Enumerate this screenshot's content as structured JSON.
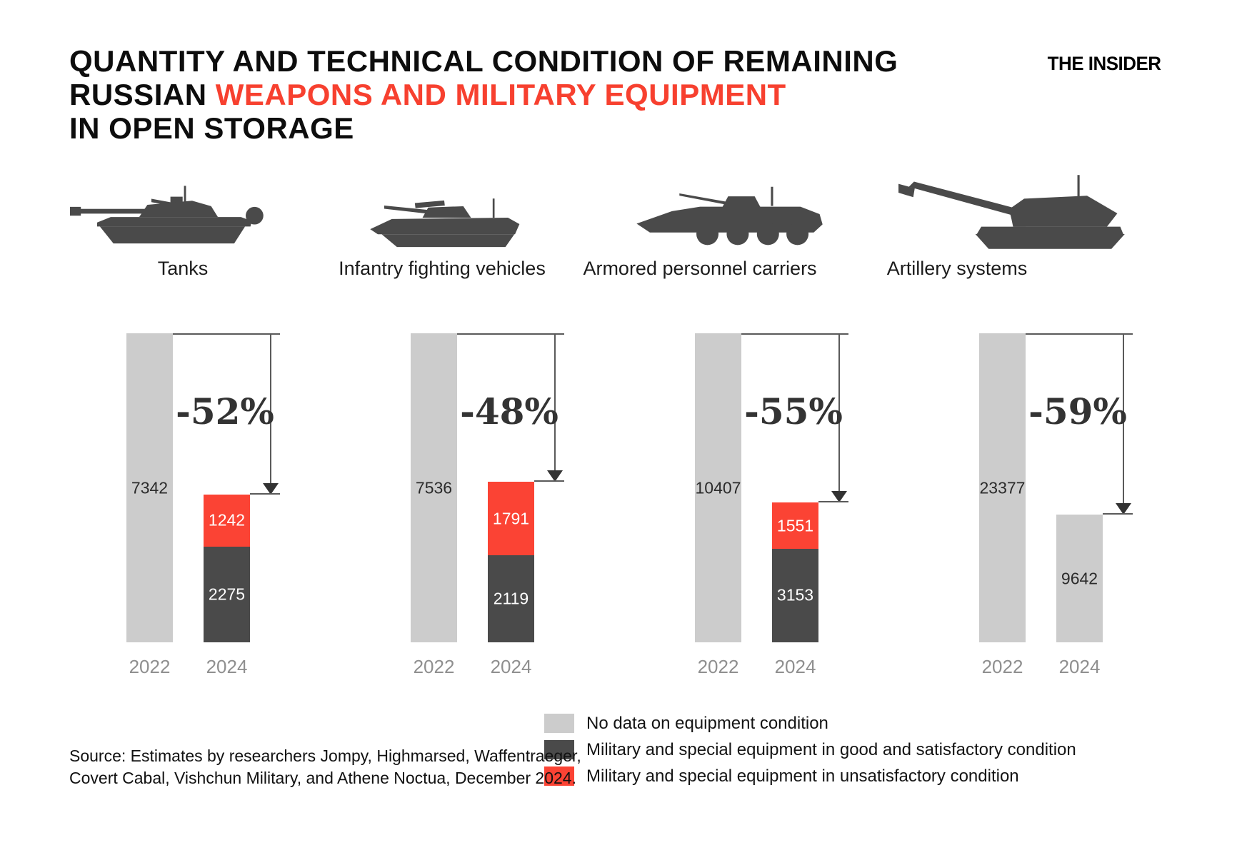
{
  "header": {
    "title_line1": "QUANTITY AND TECHNICAL CONDITION OF REMAINING",
    "title_line2_prefix": "RUSSIAN",
    "title_line2_highlight": "WEAPONS AND MILITARY EQUIPMENT",
    "title_line3": "IN OPEN STORAGE",
    "brand": "THE INSIDER"
  },
  "colors": {
    "title_highlight": "#f7402f",
    "nodata": "#cccccc",
    "good": "#4a4a4a",
    "unsat": "#fb4334",
    "value_dark_text": "#2b2b2b",
    "value_light_text": "#ffffff"
  },
  "chart_data": {
    "type": "bar",
    "title": "Quantity and technical condition of remaining Russian weapons and military equipment in open storage",
    "years": [
      "2022",
      "2024"
    ],
    "categories": [
      "Tanks",
      "Infantry fighting vehicles",
      "Armored personnel carriers",
      "Artillery systems"
    ],
    "grid": false,
    "legend_position": "bottom-right",
    "normalization": "each 2022 bar drawn full height; 2024 bar scaled to its 2022 total",
    "groups": [
      {
        "category": "Tanks",
        "icon": "tank-icon",
        "percent_change": "-52%",
        "bars": [
          {
            "year": "2022",
            "segments": [
              {
                "condition": "nodata",
                "value": 7342
              }
            ]
          },
          {
            "year": "2024",
            "segments": [
              {
                "condition": "unsat",
                "value": 1242
              },
              {
                "condition": "good",
                "value": 2275
              }
            ]
          }
        ]
      },
      {
        "category": "Infantry fighting vehicles",
        "icon": "ifv-icon",
        "percent_change": "-48%",
        "bars": [
          {
            "year": "2022",
            "segments": [
              {
                "condition": "nodata",
                "value": 7536
              }
            ]
          },
          {
            "year": "2024",
            "segments": [
              {
                "condition": "unsat",
                "value": 1791
              },
              {
                "condition": "good",
                "value": 2119
              }
            ]
          }
        ]
      },
      {
        "category": "Armored personnel carriers",
        "icon": "apc-icon",
        "percent_change": "-55%",
        "bars": [
          {
            "year": "2022",
            "segments": [
              {
                "condition": "nodata",
                "value": 10407
              }
            ]
          },
          {
            "year": "2024",
            "segments": [
              {
                "condition": "unsat",
                "value": 1551
              },
              {
                "condition": "good",
                "value": 3153
              }
            ]
          }
        ]
      },
      {
        "category": "Artillery systems",
        "icon": "artillery-icon",
        "percent_change": "-59%",
        "bars": [
          {
            "year": "2022",
            "segments": [
              {
                "condition": "nodata",
                "value": 23377
              }
            ]
          },
          {
            "year": "2024",
            "segments": [
              {
                "condition": "nodata",
                "value": 9642
              }
            ]
          }
        ]
      }
    ]
  },
  "legend": {
    "items": [
      {
        "condition": "nodata",
        "label": "No data on equipment condition"
      },
      {
        "condition": "good",
        "label": "Military and special equipment in good and satisfactory condition"
      },
      {
        "condition": "unsat",
        "label": "Military and special equipment in unsatisfactory condition"
      }
    ]
  },
  "source": {
    "line1": "Source: Estimates by researchers Jompy, Highmarsed, Waffentraeger,",
    "line2": "Covert Cabal, Vishchun Military, and Athene Noctua, December 2024."
  }
}
